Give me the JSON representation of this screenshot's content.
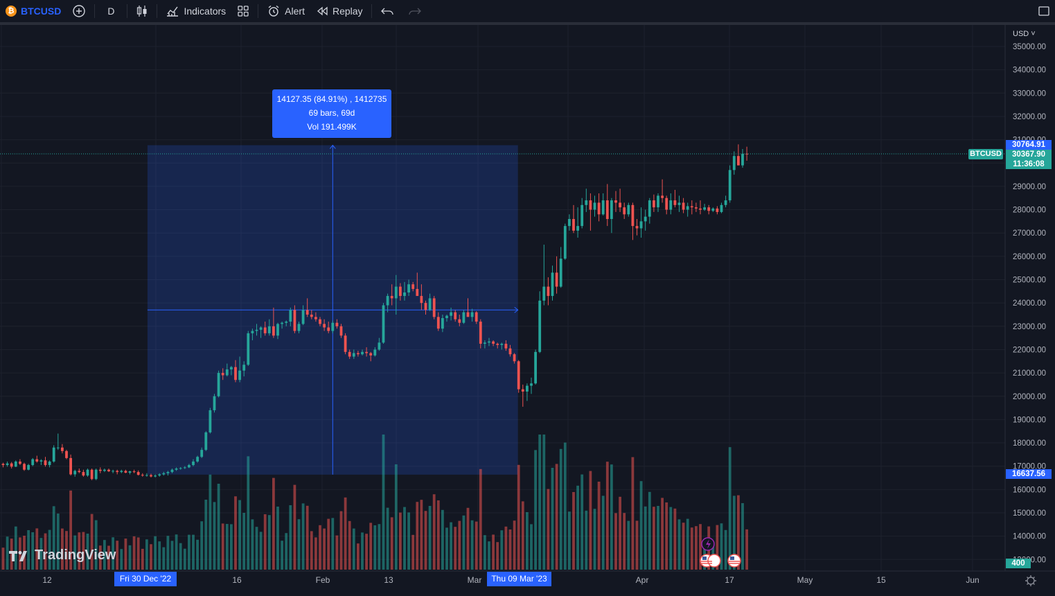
{
  "toolbar": {
    "symbol": "BTCUSD",
    "interval": "D",
    "indicators_label": "Indicators",
    "alert_label": "Alert",
    "replay_label": "Replay"
  },
  "currency": "USD",
  "measure": {
    "line1": "14127.35 (84.91%) , 1412735",
    "line2": "69 bars, 69d",
    "line3": "Vol 191.499K"
  },
  "price_axis": {
    "ticks": [
      "35000.00",
      "34000.00",
      "33000.00",
      "32000.00",
      "31000.00",
      "29000.00",
      "28000.00",
      "27000.00",
      "26000.00",
      "25000.00",
      "24000.00",
      "23000.00",
      "22000.00",
      "21000.00",
      "20000.00",
      "19000.00",
      "18000.00",
      "17000.00",
      "16000.00",
      "15000.00",
      "14000.00",
      "13000.00"
    ],
    "high_tag": "30764.91",
    "last_price": "30367.90",
    "countdown": "11:36:08",
    "symbol_tag": "BTCUSD",
    "low_tag": "16637.56",
    "volume_tag": "400"
  },
  "time_axis": {
    "ticks": [
      "12",
      "16",
      "Feb",
      "13",
      "Mar",
      "Apr",
      "17",
      "May",
      "15",
      "Jun"
    ],
    "start_label": "Fri 30 Dec '22",
    "end_label": "Thu 09 Mar '23"
  },
  "branding": "TradingView",
  "colors": {
    "up": "#26a69a",
    "down": "#ef5350",
    "accent": "#2962ff",
    "background": "#131722"
  },
  "chart_data": {
    "type": "candlestick",
    "y_unit": "USD",
    "ylim": [
      12800,
      35200
    ],
    "x_range": [
      "2022-12-01",
      "2023-06-06"
    ],
    "candles": [
      [
        17100,
        17150,
        16950,
        17050
      ],
      [
        17050,
        17200,
        16980,
        17120
      ],
      [
        17120,
        17180,
        16900,
        16980
      ],
      [
        16980,
        17250,
        16960,
        17200
      ],
      [
        17200,
        17300,
        17050,
        17100
      ],
      [
        17100,
        17150,
        16800,
        16850
      ],
      [
        16850,
        17100,
        16820,
        17050
      ],
      [
        17050,
        17350,
        17000,
        17300
      ],
      [
        17300,
        17450,
        17150,
        17200
      ],
      [
        17200,
        17300,
        17050,
        17250
      ],
      [
        17250,
        17400,
        16980,
        17050
      ],
      [
        17050,
        17250,
        16950,
        17200
      ],
      [
        17200,
        17900,
        17150,
        17800
      ],
      [
        17800,
        18400,
        17700,
        17800
      ],
      [
        17800,
        17950,
        17550,
        17650
      ],
      [
        17650,
        17700,
        17300,
        17350
      ],
      [
        17350,
        17500,
        16600,
        16650
      ],
      [
        16650,
        16850,
        16550,
        16800
      ],
      [
        16800,
        16900,
        16700,
        16750
      ],
      [
        16750,
        16850,
        16550,
        16600
      ],
      [
        16600,
        16900,
        16550,
        16850
      ],
      [
        16850,
        16900,
        16400,
        16450
      ],
      [
        16450,
        16900,
        16400,
        16850
      ],
      [
        16850,
        16950,
        16700,
        16800
      ],
      [
        16800,
        16900,
        16750,
        16850
      ],
      [
        16850,
        16900,
        16750,
        16780
      ],
      [
        16780,
        16850,
        16700,
        16800
      ],
      [
        16800,
        16850,
        16650,
        16750
      ],
      [
        16750,
        16850,
        16700,
        16800
      ],
      [
        16800,
        16850,
        16700,
        16720
      ],
      [
        16720,
        16800,
        16650,
        16780
      ],
      [
        16780,
        16850,
        16700,
        16750
      ],
      [
        16750,
        16820,
        16600,
        16630
      ],
      [
        16630,
        16700,
        16550,
        16600
      ],
      [
        16600,
        16700,
        16550,
        16620
      ],
      [
        16620,
        16680,
        16520,
        16560
      ],
      [
        16560,
        16650,
        16520,
        16600
      ],
      [
        16600,
        16700,
        16550,
        16650
      ],
      [
        16650,
        16760,
        16600,
        16700
      ],
      [
        16700,
        16800,
        16600,
        16750
      ],
      [
        16750,
        16900,
        16700,
        16850
      ],
      [
        16850,
        16950,
        16800,
        16900
      ],
      [
        16900,
        16960,
        16850,
        16920
      ],
      [
        16920,
        17000,
        16880,
        16950
      ],
      [
        16950,
        17100,
        16920,
        17050
      ],
      [
        17050,
        17300,
        17000,
        17200
      ],
      [
        17200,
        17450,
        17150,
        17400
      ],
      [
        17400,
        17800,
        17350,
        17700
      ],
      [
        17700,
        18500,
        17650,
        18450
      ],
      [
        18450,
        19500,
        18400,
        19400
      ],
      [
        19400,
        20100,
        19300,
        20000
      ],
      [
        20000,
        21100,
        19950,
        21000
      ],
      [
        21000,
        21200,
        20700,
        20900
      ],
      [
        20900,
        21400,
        20850,
        21150
      ],
      [
        21150,
        21300,
        20900,
        21250
      ],
      [
        21250,
        21550,
        20600,
        20700
      ],
      [
        20700,
        21700,
        20600,
        21100
      ],
      [
        21100,
        21500,
        20850,
        21350
      ],
      [
        21350,
        22800,
        21300,
        22700
      ],
      [
        22700,
        22900,
        22400,
        22800
      ],
      [
        22800,
        23100,
        22600,
        22850
      ],
      [
        22850,
        23000,
        22500,
        22950
      ],
      [
        22950,
        23200,
        22600,
        22700
      ],
      [
        22700,
        23300,
        22600,
        23000
      ],
      [
        23000,
        23800,
        22500,
        22600
      ],
      [
        22600,
        23150,
        22450,
        23100
      ],
      [
        23100,
        23200,
        22900,
        23150
      ],
      [
        23150,
        23250,
        23000,
        23200
      ],
      [
        23200,
        23800,
        23000,
        23700
      ],
      [
        23700,
        23900,
        22700,
        22800
      ],
      [
        22800,
        23200,
        22700,
        23100
      ],
      [
        23100,
        23900,
        23050,
        23700
      ],
      [
        23700,
        24200,
        23400,
        23500
      ],
      [
        23500,
        23700,
        23300,
        23400
      ],
      [
        23400,
        23600,
        23200,
        23300
      ],
      [
        23300,
        23400,
        23000,
        23100
      ],
      [
        23100,
        23300,
        22800,
        22950
      ],
      [
        22950,
        23200,
        22700,
        22800
      ],
      [
        22800,
        23250,
        22700,
        23150
      ],
      [
        23150,
        23300,
        22900,
        23000
      ],
      [
        23000,
        23100,
        22500,
        22600
      ],
      [
        22600,
        22700,
        21800,
        21900
      ],
      [
        21900,
        22000,
        21600,
        21700
      ],
      [
        21700,
        22000,
        21600,
        21850
      ],
      [
        21850,
        21950,
        21700,
        21800
      ],
      [
        21800,
        22000,
        21750,
        21900
      ],
      [
        21900,
        22100,
        21700,
        21850
      ],
      [
        21850,
        21900,
        21500,
        21750
      ],
      [
        21750,
        22100,
        21700,
        22000
      ],
      [
        22000,
        22500,
        21950,
        22300
      ],
      [
        22300,
        24000,
        22250,
        23900
      ],
      [
        23900,
        24400,
        23600,
        24300
      ],
      [
        24300,
        24800,
        23900,
        24200
      ],
      [
        24200,
        25200,
        23500,
        24700
      ],
      [
        24700,
        24850,
        24100,
        24300
      ],
      [
        24300,
        24900,
        24100,
        24450
      ],
      [
        24450,
        25000,
        24300,
        24800
      ],
      [
        24800,
        24900,
        24500,
        24600
      ],
      [
        24600,
        25300,
        24400,
        24300
      ],
      [
        24300,
        24800,
        23700,
        24000
      ],
      [
        24000,
        24100,
        23500,
        23700
      ],
      [
        23700,
        24400,
        23650,
        24200
      ],
      [
        24200,
        24300,
        23300,
        23400
      ],
      [
        23400,
        23600,
        22800,
        22900
      ],
      [
        22900,
        23500,
        22750,
        23350
      ],
      [
        23350,
        23500,
        23200,
        23450
      ],
      [
        23450,
        23800,
        23250,
        23600
      ],
      [
        23600,
        23700,
        23200,
        23300
      ],
      [
        23300,
        23500,
        23000,
        23150
      ],
      [
        23150,
        23700,
        23100,
        23600
      ],
      [
        23600,
        24200,
        23500,
        23400
      ],
      [
        23400,
        23750,
        23200,
        23600
      ],
      [
        23600,
        23650,
        23100,
        23200
      ],
      [
        23200,
        23300,
        22050,
        22250
      ],
      [
        22250,
        22400,
        22050,
        22300
      ],
      [
        22300,
        22500,
        22150,
        22350
      ],
      [
        22350,
        22400,
        22150,
        22250
      ],
      [
        22250,
        22300,
        22050,
        22200
      ],
      [
        22200,
        22300,
        22000,
        22250
      ],
      [
        22250,
        22400,
        21950,
        22050
      ],
      [
        22050,
        22200,
        21700,
        21800
      ],
      [
        21800,
        21850,
        21400,
        21500
      ],
      [
        21500,
        21550,
        20150,
        20300
      ],
      [
        20300,
        20500,
        19550,
        20200
      ],
      [
        20200,
        20550,
        19800,
        20450
      ],
      [
        20450,
        20800,
        20100,
        20550
      ],
      [
        20550,
        22000,
        20500,
        21900
      ],
      [
        21900,
        24500,
        21850,
        24100
      ],
      [
        24100,
        26500,
        23900,
        24700
      ],
      [
        24700,
        25100,
        23900,
        24300
      ],
      [
        24300,
        25600,
        24100,
        25300
      ],
      [
        25300,
        26000,
        24400,
        24700
      ],
      [
        24700,
        26400,
        24650,
        25900
      ],
      [
        25900,
        27400,
        25850,
        27300
      ],
      [
        27300,
        27800,
        27100,
        27600
      ],
      [
        27600,
        28200,
        27000,
        27100
      ],
      [
        27100,
        28100,
        26800,
        27300
      ],
      [
        27300,
        28500,
        27200,
        28200
      ],
      [
        28200,
        28900,
        27900,
        28400
      ],
      [
        28400,
        28700,
        27100,
        28000
      ],
      [
        28000,
        28600,
        27700,
        28300
      ],
      [
        28300,
        28700,
        27500,
        27800
      ],
      [
        27800,
        28700,
        27750,
        28400
      ],
      [
        28400,
        29100,
        27300,
        27600
      ],
      [
        27600,
        28500,
        27000,
        28400
      ],
      [
        28400,
        28800,
        27900,
        28300
      ],
      [
        28300,
        28900,
        27900,
        28100
      ],
      [
        28100,
        28300,
        27600,
        27800
      ],
      [
        27800,
        28300,
        27700,
        28200
      ],
      [
        28200,
        28300,
        26700,
        27300
      ],
      [
        27300,
        27600,
        26900,
        27200
      ],
      [
        27200,
        28100,
        26800,
        27500
      ],
      [
        27500,
        28000,
        27100,
        27700
      ],
      [
        27700,
        28500,
        27400,
        28400
      ],
      [
        28400,
        28650,
        27900,
        28100
      ],
      [
        28100,
        28700,
        27900,
        28600
      ],
      [
        28600,
        29300,
        28300,
        28500
      ],
      [
        28500,
        28600,
        27800,
        28000
      ],
      [
        28000,
        28700,
        27800,
        28400
      ],
      [
        28400,
        28850,
        28100,
        28200
      ],
      [
        28200,
        28600,
        27900,
        28300
      ],
      [
        28300,
        28500,
        27850,
        28000
      ],
      [
        28000,
        28300,
        27700,
        28150
      ],
      [
        28150,
        28400,
        27800,
        28100
      ],
      [
        28100,
        28300,
        27900,
        28050
      ],
      [
        28050,
        28400,
        27800,
        28000
      ],
      [
        28000,
        28250,
        27950,
        28100
      ],
      [
        28100,
        28200,
        27800,
        27950
      ],
      [
        27950,
        28100,
        27900,
        28050
      ],
      [
        28050,
        28150,
        27800,
        27900
      ],
      [
        27900,
        28300,
        27850,
        28200
      ],
      [
        28200,
        28600,
        28100,
        28400
      ],
      [
        28400,
        29900,
        28300,
        29700
      ],
      [
        29700,
        30500,
        29500,
        30300
      ],
      [
        30300,
        30800,
        29900,
        29900
      ],
      [
        29900,
        30600,
        29800,
        30400
      ],
      [
        30400,
        30700,
        30100,
        30368
      ]
    ]
  }
}
